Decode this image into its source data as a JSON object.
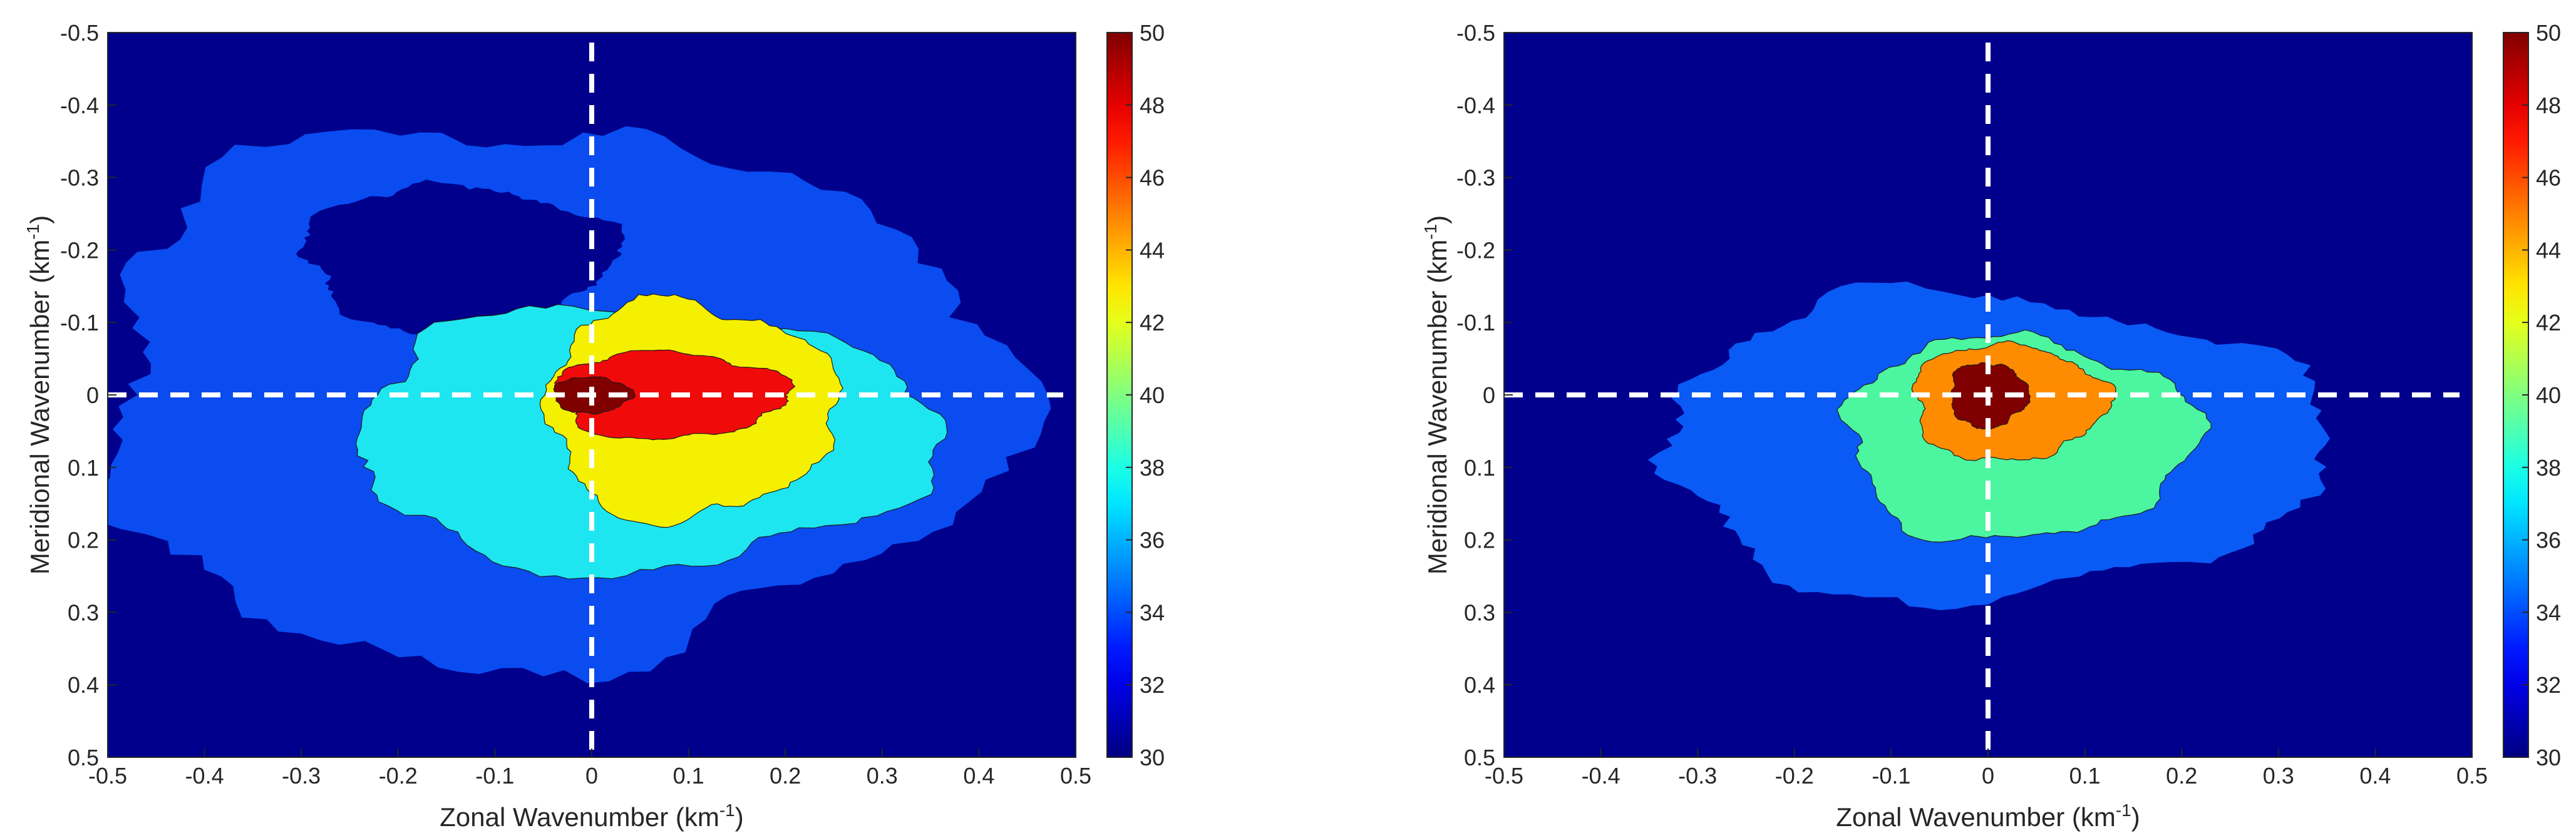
{
  "chart_data": [
    {
      "type": "heatmap",
      "panel": "left",
      "xlabel": "Zonal Wavenumber (km",
      "xlabel_sup": "-1",
      "xlabel_end": ")",
      "ylabel": "Meridional Wavenumber (km",
      "ylabel_sup": "-1",
      "ylabel_end": ")",
      "xlim": [
        -0.5,
        0.5
      ],
      "ylim": [
        -0.5,
        0.5
      ],
      "y_reversed": true,
      "x_ticks": [
        "-0.5",
        "-0.4",
        "-0.3",
        "-0.2",
        "-0.1",
        "0",
        "0.1",
        "0.2",
        "0.3",
        "0.4",
        "0.5"
      ],
      "y_ticks": [
        "-0.5",
        "-0.4",
        "-0.3",
        "-0.2",
        "-0.1",
        "0",
        "0.1",
        "0.2",
        "0.3",
        "0.4",
        "0.5"
      ],
      "colorbar": {
        "min": 30,
        "max": 50,
        "ticks": [
          "30",
          "32",
          "34",
          "36",
          "38",
          "40",
          "42",
          "44",
          "46",
          "48",
          "50"
        ],
        "colormap": "jet"
      },
      "reference_lines": {
        "x": 0,
        "y": 0,
        "style": "dashed",
        "color": "#ffffff"
      },
      "contour_levels": [
        {
          "level": 33,
          "color": "#0a4cf0",
          "center": [
            -0.05,
            0.0
          ],
          "radii": [
            0.47,
            0.37
          ]
        },
        {
          "level": 37,
          "color": "#1ee6f0",
          "center": [
            0.05,
            0.06
          ],
          "radii": [
            0.3,
            0.18
          ]
        },
        {
          "level": 42,
          "color": "#f5f000",
          "center": [
            0.1,
            0.02
          ],
          "radii": [
            0.15,
            0.15
          ]
        },
        {
          "level": 47,
          "color": "#f00a0a",
          "center": [
            0.08,
            0.0
          ],
          "radii": [
            0.12,
            0.06
          ]
        },
        {
          "level": 50,
          "color": "#800000",
          "center": [
            0.0,
            0.0
          ],
          "radii": [
            0.04,
            0.025
          ]
        }
      ],
      "hole_level": 30,
      "hole": {
        "center": [
          -0.14,
          -0.19
        ],
        "radii": [
          0.16,
          0.1
        ]
      }
    },
    {
      "type": "heatmap",
      "panel": "right",
      "xlabel": "Zonal Wavenumber (km",
      "xlabel_sup": "-1",
      "xlabel_end": ")",
      "ylabel": "Meridional Wavenumber (km",
      "ylabel_sup": "-1",
      "ylabel_end": ")",
      "xlim": [
        -0.5,
        0.5
      ],
      "ylim": [
        -0.5,
        0.5
      ],
      "y_reversed": true,
      "x_ticks": [
        "-0.5",
        "-0.4",
        "-0.3",
        "-0.2",
        "-0.1",
        "0",
        "0.1",
        "0.2",
        "0.3",
        "0.4",
        "0.5"
      ],
      "y_ticks": [
        "-0.5",
        "-0.4",
        "-0.3",
        "-0.2",
        "-0.1",
        "0",
        "0.1",
        "0.2",
        "0.3",
        "0.4",
        "0.5"
      ],
      "colorbar": {
        "min": 30,
        "max": 50,
        "ticks": [
          "30",
          "32",
          "34",
          "36",
          "38",
          "40",
          "42",
          "44",
          "46",
          "48",
          "50"
        ],
        "colormap": "jet"
      },
      "reference_lines": {
        "x": 0,
        "y": 0,
        "style": "dashed",
        "color": "#ffffff"
      },
      "contour_levels": [
        {
          "level": 34,
          "color": "#0a5af5",
          "center": [
            0.0,
            0.07
          ],
          "radii": [
            0.34,
            0.21
          ]
        },
        {
          "level": 39,
          "color": "#4cf5a0",
          "center": [
            0.03,
            0.06
          ],
          "radii": [
            0.18,
            0.14
          ]
        },
        {
          "level": 45,
          "color": "#ff8c00",
          "center": [
            0.02,
            0.01
          ],
          "radii": [
            0.1,
            0.08
          ]
        },
        {
          "level": 50,
          "color": "#800000",
          "center": [
            0.0,
            0.0
          ],
          "radii": [
            0.04,
            0.045
          ]
        }
      ]
    }
  ]
}
